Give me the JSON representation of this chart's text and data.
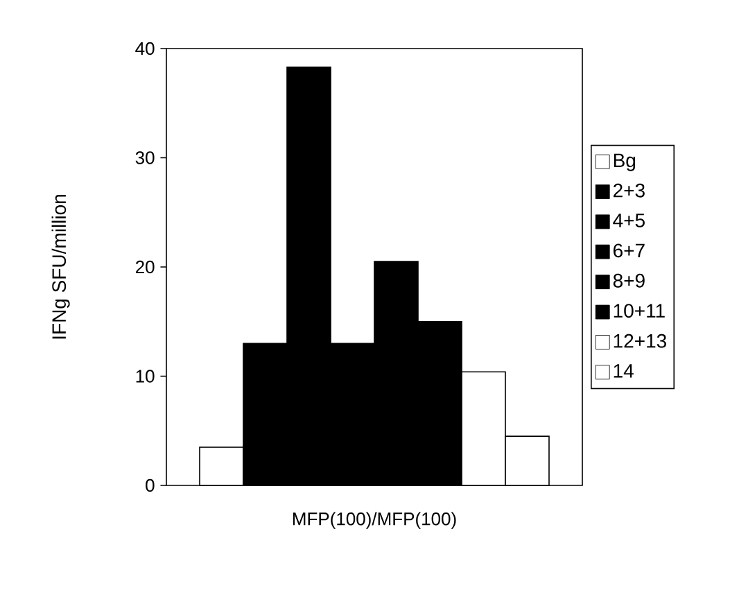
{
  "chart_data": {
    "type": "bar",
    "xlabel": "MFP(100)/MFP(100)",
    "ylabel": "IFNg SFU/million",
    "categories": [
      null
    ],
    "series": [
      {
        "name": "Bg",
        "color": "#ffffff",
        "values": [
          3.5
        ]
      },
      {
        "name": "2+3",
        "color": "#000000",
        "values": [
          13
        ]
      },
      {
        "name": "4+5",
        "color": "#000000",
        "values": [
          38.3
        ]
      },
      {
        "name": "6+7",
        "color": "#000000",
        "values": [
          13
        ]
      },
      {
        "name": "8+9",
        "color": "#000000",
        "values": [
          20.5
        ]
      },
      {
        "name": "10+11",
        "color": "#000000",
        "values": [
          15
        ]
      },
      {
        "name": "12+13",
        "color": "#ffffff",
        "values": [
          10.4
        ]
      },
      {
        "name": "14",
        "color": "#ffffff",
        "values": [
          4.5
        ]
      }
    ],
    "ylim": [
      0,
      40
    ],
    "yticks": [
      {
        "value": 0,
        "label": "0"
      },
      {
        "value": 10,
        "label": "10"
      },
      {
        "value": 20,
        "label": "20"
      },
      {
        "value": 30,
        "label": "30"
      },
      {
        "value": 40,
        "label": "40"
      }
    ],
    "legend": "right"
  }
}
